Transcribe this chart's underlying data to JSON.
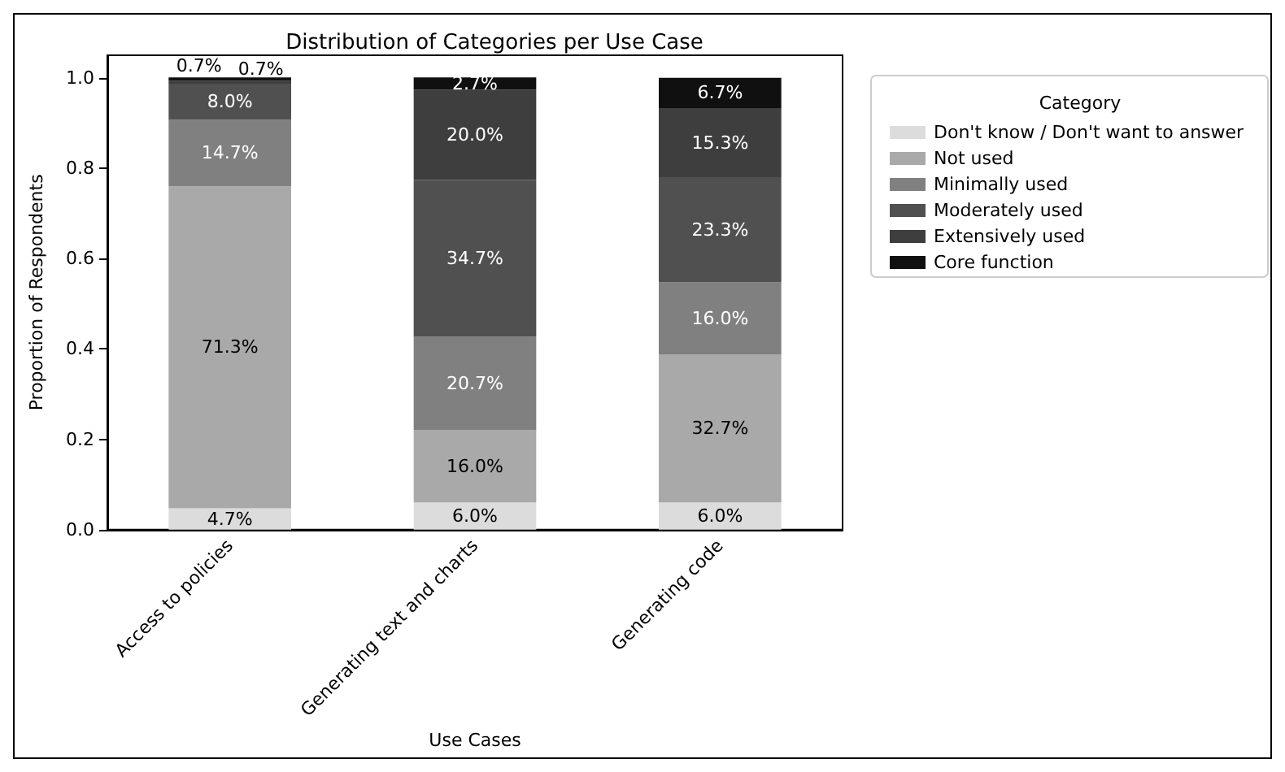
{
  "chart_data": {
    "type": "bar",
    "stacked": true,
    "title": "Distribution of Categories per Use Case",
    "xlabel": "Use Cases",
    "ylabel": "Proportion of Respondents",
    "legend_title": "Category",
    "legend": "top right",
    "categories": [
      "Access to policies",
      "Generating text and charts",
      "Generating code"
    ],
    "ylim": [
      0,
      1.05
    ],
    "yticks": [
      {
        "value": 0,
        "label": "0.0"
      },
      {
        "value": 0.2,
        "label": "0.2"
      },
      {
        "value": 0.4,
        "label": "0.4"
      },
      {
        "value": 0.6,
        "label": "0.6"
      },
      {
        "value": 0.8,
        "label": "0.8"
      },
      {
        "value": 1,
        "label": "1.0"
      }
    ],
    "grid": false,
    "series": [
      {
        "name": "Don't know / Don't want to answer",
        "color": "#dcdcdc",
        "values": [
          0.047,
          0.06,
          0.06
        ],
        "value_labels": [
          "4.7%",
          "6.0%",
          "6.0%"
        ]
      },
      {
        "name": "Not used",
        "color": "#a9a9a9",
        "values": [
          0.713,
          0.16,
          0.327
        ],
        "value_labels": [
          "71.3%",
          "16.0%",
          "32.7%"
        ]
      },
      {
        "name": "Minimally used",
        "color": "#808080",
        "values": [
          0.147,
          0.207,
          0.16
        ],
        "value_labels": [
          "14.7%",
          "20.7%",
          "16.0%"
        ]
      },
      {
        "name": "Moderately used",
        "color": "#505050",
        "values": [
          0.08,
          0.347,
          0.233
        ],
        "value_labels": [
          "8.0%",
          "34.7%",
          "23.3%"
        ]
      },
      {
        "name": "Extensively used",
        "color": "#3e3e3e",
        "values": [
          0.007,
          0.2,
          0.153
        ],
        "value_labels": [
          "0.7%",
          "20.0%",
          "15.3%"
        ]
      },
      {
        "name": "Core function",
        "color": "#101010",
        "values": [
          0.007,
          0.027,
          0.067
        ],
        "value_labels": [
          "0.7%",
          "2.7%",
          "6.7%"
        ]
      }
    ]
  }
}
